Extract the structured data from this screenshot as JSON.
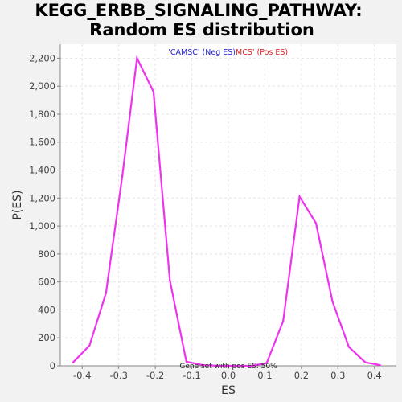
{
  "chart_data": {
    "type": "line",
    "title_line1": "KEGG_ERBB_SIGNALING_PATHWAY:",
    "title_line2": "Random ES distribution",
    "xlabel": "ES",
    "ylabel": "P(ES)",
    "xlim": [
      -0.46,
      0.46
    ],
    "ylim": [
      0,
      2300
    ],
    "xticks": [
      -0.4,
      -0.3,
      -0.2,
      -0.1,
      0.0,
      0.1,
      0.2,
      0.3,
      0.4
    ],
    "xtick_labels": [
      "-0.4",
      "-0.3",
      "-0.2",
      "-0.1",
      "0.0",
      "0.1",
      "0.2",
      "0.3",
      "0.4"
    ],
    "yticks": [
      0,
      200,
      400,
      600,
      800,
      1000,
      1200,
      1400,
      1600,
      1800,
      2000,
      2200
    ],
    "ytick_labels": [
      "0",
      "200",
      "400",
      "600",
      "800",
      "1,000",
      "1,200",
      "1,400",
      "1,600",
      "1,800",
      "2,000",
      "2,200"
    ],
    "grid": true,
    "series": [
      {
        "color": "#ee33ee",
        "x": [
          -0.425,
          -0.38,
          -0.335,
          -0.29,
          -0.25,
          -0.205,
          -0.16,
          -0.115,
          -0.07,
          -0.025,
          0.02,
          0.065,
          0.105,
          0.15,
          0.195,
          0.24,
          0.285,
          0.33,
          0.375,
          0.415
        ],
        "y": [
          25,
          145,
          520,
          1360,
          2200,
          1960,
          610,
          30,
          5,
          0,
          0,
          0,
          20,
          320,
          1210,
          1020,
          460,
          135,
          25,
          5
        ]
      }
    ],
    "legend": {
      "neg_label": "'CAMSC' (Neg ES)",
      "pos_label": "MCS' (Pos ES)",
      "neg_color": "#2222cc",
      "pos_color": "#dd2222"
    },
    "overlay_text": "Gene set with pos ES: 50%"
  }
}
